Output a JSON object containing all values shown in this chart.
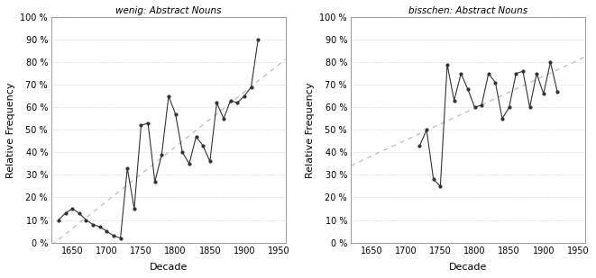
{
  "wenig_x": [
    1630,
    1640,
    1650,
    1660,
    1670,
    1680,
    1690,
    1700,
    1710,
    1720,
    1730,
    1740,
    1750,
    1760,
    1770,
    1780,
    1790,
    1800,
    1810,
    1820,
    1830,
    1840,
    1850,
    1860,
    1870,
    1880,
    1890,
    1900,
    1910,
    1920
  ],
  "wenig_y": [
    10,
    13,
    15,
    13,
    10,
    8,
    7,
    5,
    3,
    2,
    33,
    15,
    52,
    53,
    27,
    39,
    65,
    57,
    40,
    35,
    47,
    43,
    36,
    62,
    55,
    63,
    62,
    65,
    69,
    90
  ],
  "bisschen_x": [
    1720,
    1730,
    1740,
    1750,
    1760,
    1770,
    1780,
    1790,
    1800,
    1810,
    1820,
    1830,
    1840,
    1850,
    1860,
    1870,
    1880,
    1890,
    1900,
    1910,
    1920
  ],
  "bisschen_y": [
    43,
    50,
    28,
    25,
    79,
    63,
    75,
    68,
    60,
    61,
    75,
    71,
    55,
    60,
    75,
    76,
    60,
    75,
    66,
    80,
    67
  ],
  "title_wenig": "wenig: Abstract Nouns",
  "title_bisschen": "bisschen: Abstract Nouns",
  "xlabel": "Decade",
  "ylabel": "Relative Frequency",
  "xlim": [
    1620,
    1960
  ],
  "ylim": [
    0,
    100
  ],
  "yticks": [
    0,
    10,
    20,
    30,
    40,
    50,
    60,
    70,
    80,
    90,
    100
  ],
  "xticks": [
    1650,
    1700,
    1750,
    1800,
    1850,
    1900,
    1950
  ],
  "bg_color": "#ffffff",
  "line_color": "#333333",
  "dot_color": "#333333",
  "trend_color": "#bbbbbb",
  "grid_color": "#aaaaaa",
  "spine_color": "#999999"
}
